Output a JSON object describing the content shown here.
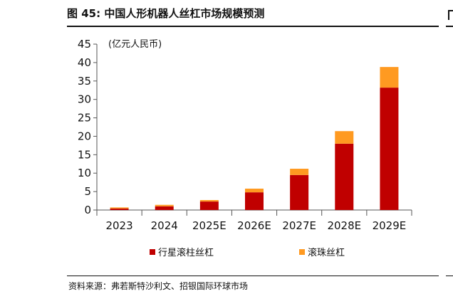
{
  "figure": {
    "title": "图 45: 中国人形机器人丝杠市场规模预测",
    "source": "资料来源：弗若斯特沙利文、招银国际环球市场"
  },
  "chart_data": {
    "type": "bar",
    "stacked": true,
    "unit_label": "(亿元人民币)",
    "categories": [
      "2023",
      "2024",
      "2025E",
      "2026E",
      "2027E",
      "2028E",
      "2029E"
    ],
    "series": [
      {
        "name": "行星滚柱丝杠",
        "color": "#c00000",
        "values": [
          0.4,
          1.0,
          2.3,
          4.8,
          9.5,
          18.0,
          33.2
        ]
      },
      {
        "name": "滚珠丝杠",
        "color": "#ff9a21",
        "values": [
          0.3,
          0.4,
          0.4,
          1.0,
          1.7,
          3.4,
          5.6
        ]
      }
    ],
    "ylim": [
      0,
      45
    ],
    "yticks": [
      0,
      5,
      10,
      15,
      20,
      25,
      30,
      35,
      40,
      45
    ],
    "grid": false,
    "legend_position": "bottom"
  }
}
